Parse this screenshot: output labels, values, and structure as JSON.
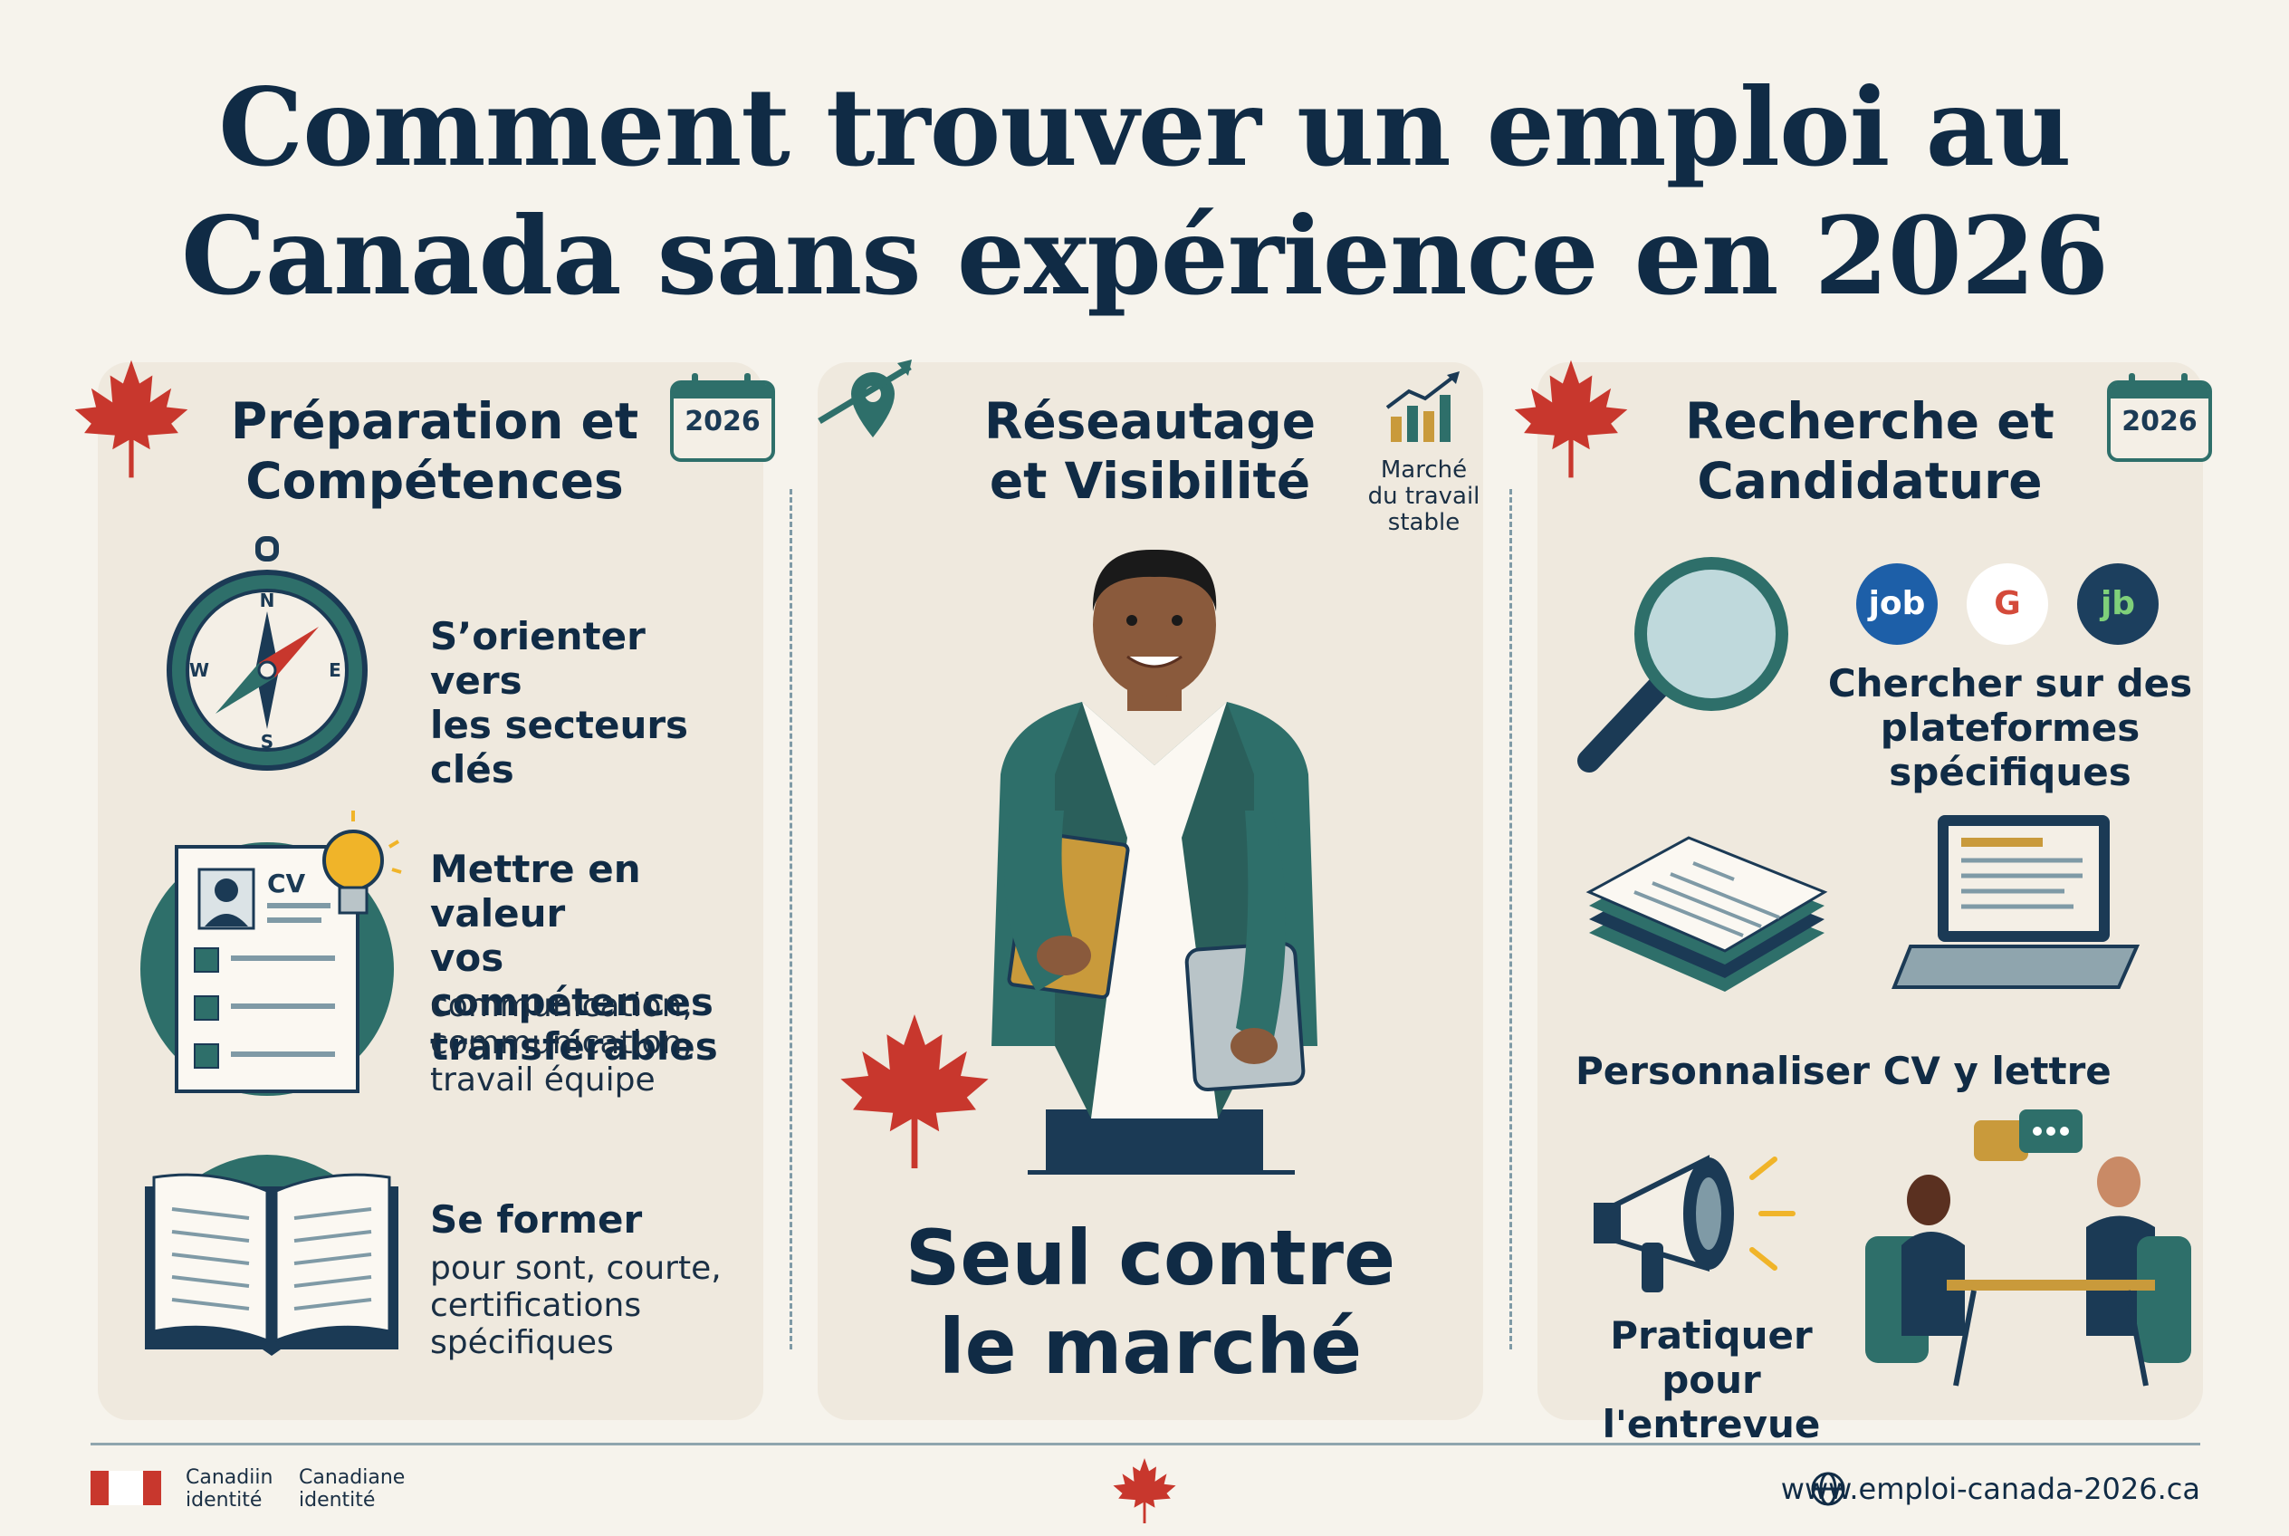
{
  "title": {
    "line1": "Comment trouver un emploi au",
    "line2": "Canada sans expérience en 2026"
  },
  "year_badge": "2026",
  "panels": {
    "left": {
      "title_line1": "Préparation et",
      "title_line2": "Compétences",
      "items": [
        {
          "bold_line1": "S’orienter vers",
          "bold_line2": "les secteurs clés"
        },
        {
          "bold_line1": "Mettre en valeur",
          "bold_line2": "vos compétences",
          "bold_line3": "transférables",
          "sub_line1": "communication,",
          "sub_line2": "communication,",
          "sub_line3": "travail équipe",
          "cv_label": "CV"
        },
        {
          "bold_line1": "Se former",
          "sub_line1": "pour sont, courte,",
          "sub_line2": "certifications",
          "sub_line3": "spécifiques"
        }
      ],
      "compass_letters": {
        "n": "N",
        "s": "S",
        "e": "E",
        "w": "W"
      }
    },
    "center": {
      "title_line1": "Réseautage",
      "title_line2": "et Visibilité",
      "market_line1": "Marché",
      "market_line2": "du travail",
      "market_line3": "stable",
      "big_line1": "Seul contre",
      "big_line2": "le marché"
    },
    "right": {
      "title_line1": "Recherche et",
      "title_line2": "Candidature",
      "platforms": [
        {
          "label": "job",
          "color": "#1d5fa8"
        },
        {
          "label": "G",
          "color": "#ffffff"
        },
        {
          "label": "jb",
          "color": "#1c3f5e"
        }
      ],
      "search_line1": "Chercher sur des",
      "search_line2": "plateformes",
      "search_line3": "spécifiques",
      "cv_text": "Personnaliser CV y lettre",
      "interview_line1": "Pratiquer pour",
      "interview_line2": "l'entrevue"
    }
  },
  "footer": {
    "label1_line1": "Canadiin",
    "label1_line2": "identité",
    "label2_line1": "Canadiane",
    "label2_line2": "identité",
    "url": "www.emploi-canada-2026.ca"
  },
  "colors": {
    "teal": "#2e6f6a",
    "navy": "#102b45",
    "maple_red": "#c8372d",
    "panel": "#efe9de"
  }
}
